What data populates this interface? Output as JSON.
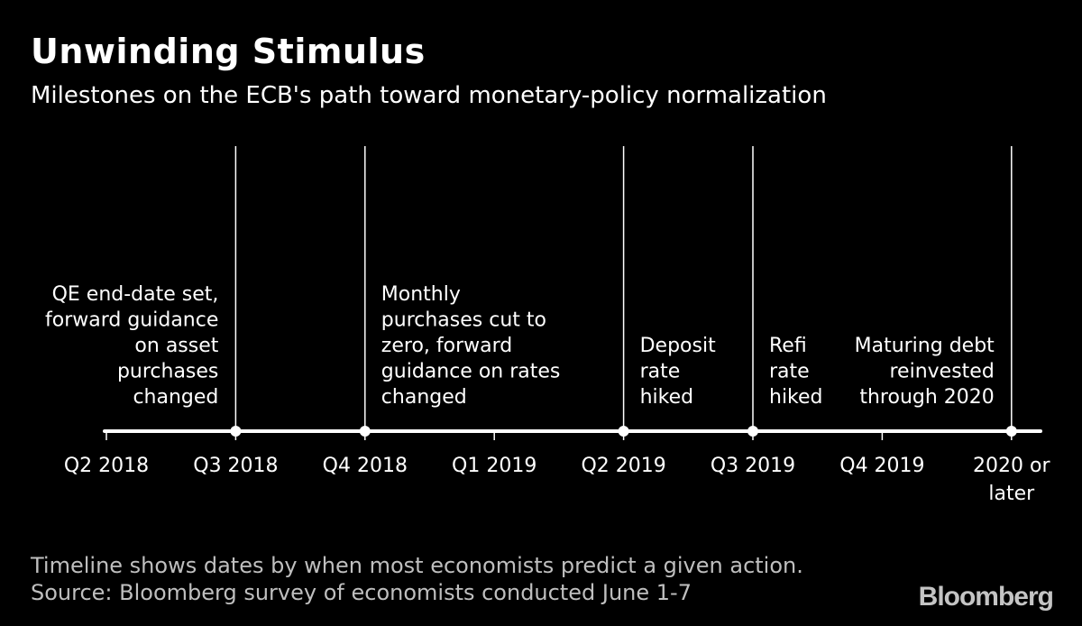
{
  "header": {
    "title": "Unwinding Stimulus",
    "subtitle": "Milestones on the ECB's path toward monetary-policy normalization"
  },
  "chart_data": {
    "type": "timeline",
    "title": "Unwinding Stimulus",
    "subtitle": "Milestones on the ECB's path toward monetary-policy normalization",
    "ticks": [
      {
        "label_lines": [
          "Q2 2018"
        ]
      },
      {
        "label_lines": [
          "Q3 2018"
        ]
      },
      {
        "label_lines": [
          "Q4 2018"
        ]
      },
      {
        "label_lines": [
          "Q1 2019"
        ]
      },
      {
        "label_lines": [
          "Q2 2019"
        ]
      },
      {
        "label_lines": [
          "Q3 2019"
        ]
      },
      {
        "label_lines": [
          "Q4 2019"
        ]
      },
      {
        "label_lines": [
          "2020 or",
          "later"
        ]
      }
    ],
    "events": [
      {
        "tick_index": 1,
        "text_lines": [
          "QE end-date set,",
          "forward guidance",
          "on asset",
          "purchases",
          "changed"
        ],
        "align": "right"
      },
      {
        "tick_index": 2,
        "text_lines": [
          "Monthly",
          "purchases cut to",
          "zero, forward",
          "guidance on rates",
          "changed"
        ],
        "align": "left"
      },
      {
        "tick_index": 4,
        "text_lines": [
          "Deposit",
          "rate",
          "hiked"
        ],
        "align": "left"
      },
      {
        "tick_index": 5,
        "text_lines": [
          "Refi",
          "rate",
          "hiked"
        ],
        "align": "left"
      },
      {
        "tick_index": 7,
        "text_lines": [
          "Maturing debt",
          "reinvested",
          "through 2020"
        ],
        "align": "right"
      }
    ],
    "colors": {
      "background": "#000000",
      "line": "#ffffff",
      "text": "#ffffff",
      "footnote": "#bfbfbf"
    }
  },
  "footer": {
    "note": "Timeline shows dates by when most economists predict a given action.",
    "source": "Source: Bloomberg survey of economists conducted June 1-7",
    "brand": "Bloomberg"
  }
}
